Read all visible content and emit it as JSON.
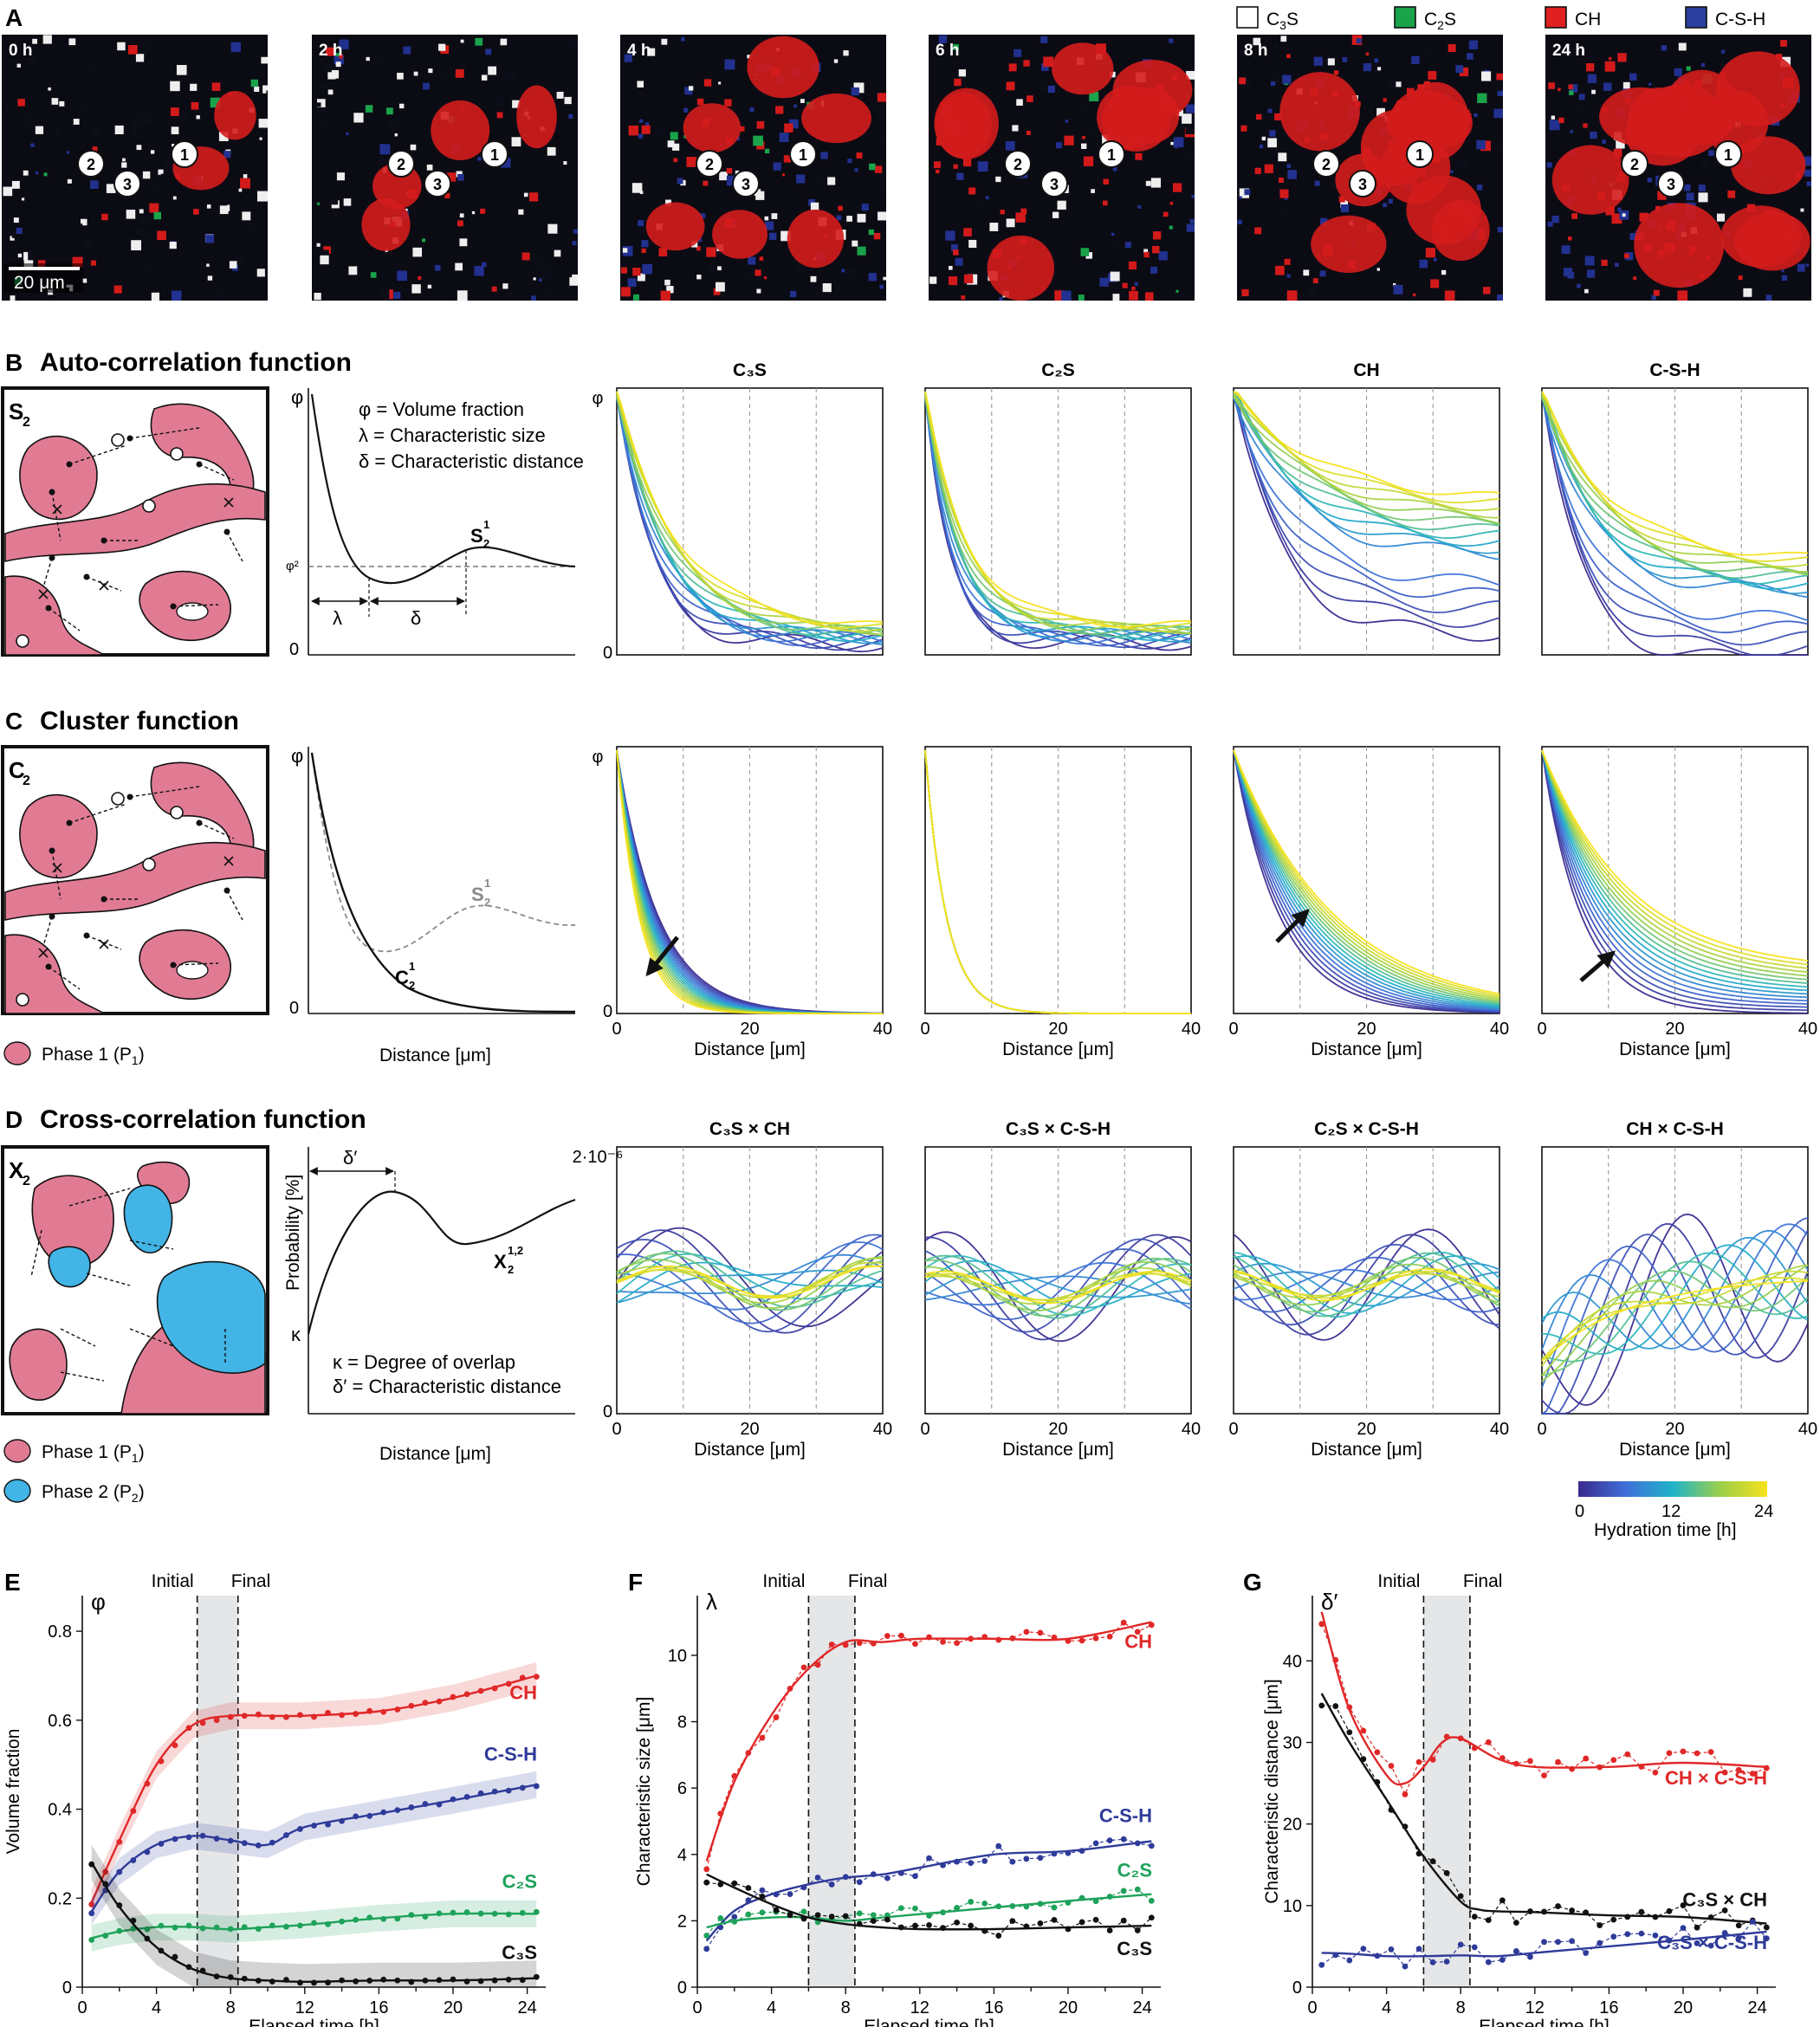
{
  "colors": {
    "c3s": "#ffffff",
    "c2s": "#1aa34a",
    "ch": "#e02020",
    "csh": "#2a3f9e",
    "phase1": "#e07b93",
    "phase2": "#42b4e6",
    "black": "#111111",
    "ch_line": "#e02828",
    "csh_line": "#2f3b99",
    "c2s_line": "#1ea25a"
  },
  "panelA": {
    "label": "A",
    "timestamps": [
      "0 h",
      "2 h",
      "4 h",
      "6 h",
      "8 h",
      "24 h"
    ],
    "scalebar": "20 μm",
    "markers": [
      "1",
      "2",
      "3"
    ],
    "legend": [
      {
        "name": "C3S",
        "base": "C",
        "sub": "3",
        "tail": "S",
        "color": "#ffffff"
      },
      {
        "name": "C2S",
        "base": "C",
        "sub": "2",
        "tail": "S",
        "color": "#1aa34a"
      },
      {
        "name": "CH",
        "base": "CH",
        "sub": "",
        "tail": "",
        "color": "#e02020"
      },
      {
        "name": "C-S-H",
        "base": "C-S-H",
        "sub": "",
        "tail": "",
        "color": "#2a3f9e"
      }
    ]
  },
  "panelB": {
    "label": "B",
    "title": "Auto-correlation function",
    "schematic_label": "S",
    "schematic_sub": "2",
    "defs": [
      "φ = Volume fraction",
      "λ = Characteristic size",
      "δ = Characteristic distance"
    ],
    "phi": "φ",
    "phi2": "φ²",
    "zero": "0",
    "lambda": "λ",
    "delta": "δ",
    "curve_label": "S",
    "curve_sup": "1",
    "curve_sub": "2",
    "columns": [
      "C₃S",
      "C₂S",
      "CH",
      "C-S-H"
    ]
  },
  "panelC": {
    "label": "C",
    "title": "Cluster function",
    "schematic_label": "C",
    "schematic_sub": "2",
    "phi": "φ",
    "zero": "0",
    "curve_s": "S",
    "curve_c": "C",
    "sup": "1",
    "sub": "2",
    "xlabel": "Distance [μm]"
  },
  "panelD": {
    "label": "D",
    "title": "Cross-correlation function",
    "schematic_label": "X",
    "schematic_sub": "2",
    "defs": [
      "κ = Degree of overlap",
      "δ′ = Characteristic distance"
    ],
    "ylabel": "Probability [%]",
    "kappa": "κ",
    "dprime": "δ′",
    "curve_label": "X",
    "curve_sup": "1,2",
    "curve_sub": "2",
    "columns": [
      "C₃S × CH",
      "C₃S × C-S-H",
      "C₂S × C-S-H",
      "CH × C-S-H"
    ],
    "ytop": "2·10⁻⁶",
    "zero": "0",
    "xlabel": "Distance [μm]"
  },
  "legends": {
    "phase1": "Phase 1 (P",
    "phase1_sub": "1",
    "phase2": "Phase 2 (P",
    "phase2_sub": "2",
    "close": ")",
    "colorbar_ticks": [
      "0",
      "12",
      "24"
    ],
    "colorbar_label": "Hydration time [h]"
  },
  "x_ticks": [
    "0",
    "20",
    "40"
  ],
  "chart_data": [
    {
      "panel": "E",
      "type": "line",
      "ylabel": "Volume fraction",
      "ysymbol": "φ",
      "xlabel": "Elapsed time [h]",
      "xlim": [
        0,
        25
      ],
      "ylim": [
        0,
        0.88
      ],
      "xticks": [
        0,
        4,
        8,
        12,
        16,
        20,
        24
      ],
      "yticks": [
        0,
        0.2,
        0.4,
        0.6,
        0.8
      ],
      "ytick_labels": [
        "0",
        "0.2",
        "0.4",
        "0.6",
        "0.8"
      ],
      "window": {
        "start": 6.2,
        "end": 8.4,
        "initial_label": "Initial",
        "final_label": "Final"
      },
      "series": [
        {
          "name": "CH",
          "label": "CH",
          "color": "#e02828",
          "label_pos": "right",
          "x": [
            0.5,
            2,
            4,
            6,
            8,
            10,
            12,
            16,
            20,
            24.5
          ],
          "y": [
            0.19,
            0.33,
            0.5,
            0.59,
            0.61,
            0.61,
            0.61,
            0.62,
            0.65,
            0.7
          ],
          "band": 0.03
        },
        {
          "name": "C-S-H",
          "label": "C-S-H",
          "color": "#2f3b99",
          "label_pos": "right",
          "x": [
            0.5,
            2,
            4,
            6,
            8,
            10,
            12,
            16,
            20,
            24.5
          ],
          "y": [
            0.17,
            0.26,
            0.32,
            0.34,
            0.33,
            0.32,
            0.36,
            0.39,
            0.42,
            0.455
          ],
          "band": 0.03
        },
        {
          "name": "C2S",
          "label": "C₂S",
          "color": "#1ea25a",
          "label_pos": "right",
          "x": [
            0.5,
            2,
            4,
            6,
            8,
            10,
            12,
            16,
            20,
            24.5
          ],
          "y": [
            0.11,
            0.125,
            0.135,
            0.135,
            0.13,
            0.135,
            0.14,
            0.155,
            0.165,
            0.165
          ],
          "band": 0.03
        },
        {
          "name": "C3S",
          "label": "C₃S",
          "color": "#111111",
          "label_pos": "right",
          "x": [
            0.5,
            2,
            4,
            6,
            8,
            10,
            12,
            16,
            20,
            24.5
          ],
          "y": [
            0.28,
            0.18,
            0.09,
            0.04,
            0.02,
            0.015,
            0.012,
            0.015,
            0.015,
            0.02
          ],
          "band": 0.04
        }
      ]
    },
    {
      "panel": "F",
      "type": "line",
      "ylabel": "Characteristic size [μm]",
      "ysymbol": "λ",
      "xlabel": "Elapsed time [h]",
      "xlim": [
        0,
        25
      ],
      "ylim": [
        0,
        11.8
      ],
      "xticks": [
        0,
        4,
        8,
        12,
        16,
        20,
        24
      ],
      "yticks": [
        0,
        2,
        4,
        6,
        8,
        10
      ],
      "ytick_labels": [
        "0",
        "2",
        "4",
        "6",
        "8",
        "10"
      ],
      "window": {
        "start": 6.0,
        "end": 8.5,
        "initial_label": "Initial",
        "final_label": "Final"
      },
      "series": [
        {
          "name": "CH",
          "label": "CH",
          "color": "#e02828",
          "x": [
            0.5,
            2,
            4,
            6,
            8,
            10,
            12,
            16,
            20,
            24.5
          ],
          "y": [
            3.8,
            6.2,
            8.2,
            9.6,
            10.4,
            10.4,
            10.5,
            10.5,
            10.5,
            11.0
          ]
        },
        {
          "name": "C-S-H",
          "label": "C-S-H",
          "color": "#2f3b99",
          "x": [
            0.5,
            2,
            4,
            6,
            8,
            10,
            12,
            16,
            20,
            24.5
          ],
          "y": [
            1.4,
            2.3,
            2.8,
            3.1,
            3.3,
            3.4,
            3.6,
            4.0,
            4.1,
            4.4
          ]
        },
        {
          "name": "C2S",
          "label": "C₂S",
          "color": "#1ea25a",
          "x": [
            0.5,
            2,
            4,
            6,
            8,
            10,
            12,
            16,
            20,
            24.5
          ],
          "y": [
            1.8,
            2.0,
            2.1,
            2.1,
            2.0,
            2.1,
            2.2,
            2.4,
            2.6,
            2.8
          ]
        },
        {
          "name": "C3S",
          "label": "C₃S",
          "color": "#111111",
          "x": [
            0.5,
            2,
            4,
            6,
            8,
            10,
            12,
            16,
            20,
            24.5
          ],
          "y": [
            3.4,
            3.0,
            2.5,
            2.1,
            1.9,
            1.8,
            1.75,
            1.75,
            1.8,
            1.85
          ]
        }
      ]
    },
    {
      "panel": "G",
      "type": "line",
      "ylabel": "Characteristic distance [μm]",
      "ysymbol": "δ′",
      "xlabel": "Elapsed time [h]",
      "xlim": [
        0,
        25
      ],
      "ylim": [
        0,
        48
      ],
      "xticks": [
        0,
        4,
        8,
        12,
        16,
        20,
        24
      ],
      "yticks": [
        0,
        10,
        20,
        30,
        40
      ],
      "ytick_labels": [
        "0",
        "10",
        "20",
        "30",
        "40"
      ],
      "window": {
        "start": 6.0,
        "end": 8.5,
        "initial_label": "Initial",
        "final_label": "Final"
      },
      "series": [
        {
          "name": "CH × C-S-H",
          "label": "CH × C-S-H",
          "color": "#e02828",
          "x": [
            0.5,
            2,
            4,
            5,
            6,
            7,
            8,
            10,
            12,
            16,
            20,
            24.5
          ],
          "y": [
            46,
            34,
            26,
            25,
            27,
            30,
            30.5,
            28,
            27,
            27,
            27.5,
            27
          ]
        },
        {
          "name": "C3S × CH",
          "label": "C₃S × CH",
          "color": "#111111",
          "x": [
            0.5,
            2,
            4,
            6,
            8,
            9,
            10,
            12,
            16,
            20,
            24.5
          ],
          "y": [
            36,
            30,
            23,
            16,
            10.5,
            9.5,
            9.3,
            9.2,
            8.8,
            8.6,
            7.8
          ]
        },
        {
          "name": "C3S × C-S-H",
          "label": "C₃S × C-S-H",
          "color": "#2f3b99",
          "x": [
            0.5,
            2,
            4,
            6,
            8,
            10,
            12,
            16,
            20,
            24.5
          ],
          "y": [
            4.2,
            4.1,
            3.8,
            3.8,
            3.9,
            3.8,
            4.2,
            5.0,
            5.8,
            6.8
          ]
        }
      ]
    }
  ]
}
